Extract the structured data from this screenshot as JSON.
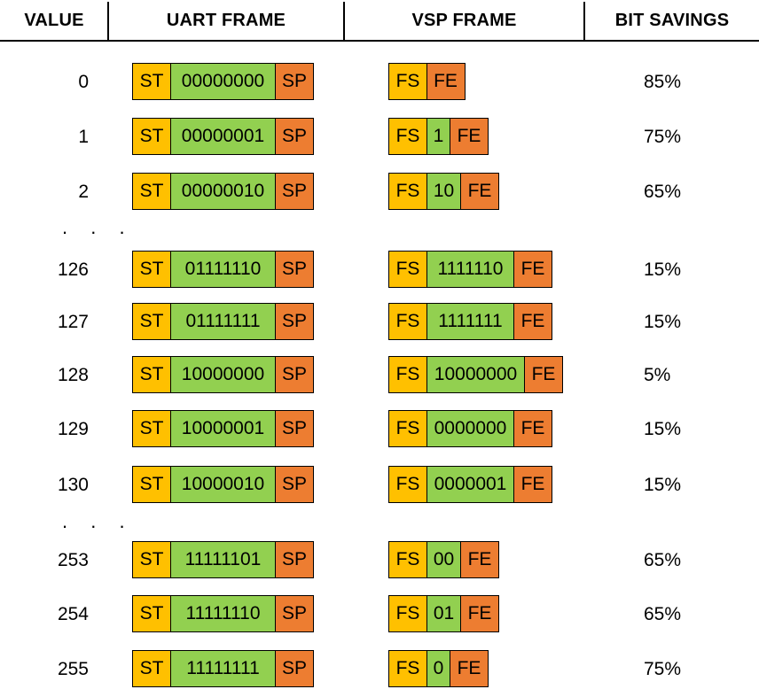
{
  "headers": {
    "value": "VALUE",
    "uart": "UART FRAME",
    "vsp": "VSP FRAME",
    "savings": "BIT SAVINGS"
  },
  "labels": {
    "start": "ST",
    "stop": "SP",
    "frame_start": "FS",
    "frame_end": "FE"
  },
  "ellipsis": ". . .",
  "colors": {
    "start": "#ffc000",
    "data": "#92d050",
    "stop": "#ed7d31"
  },
  "rows": [
    {
      "value": "0",
      "uart_bits": "00000000",
      "vsp_bits": "",
      "savings": "85%"
    },
    {
      "value": "1",
      "uart_bits": "00000001",
      "vsp_bits": "1",
      "savings": "75%"
    },
    {
      "value": "2",
      "uart_bits": "00000010",
      "vsp_bits": "10",
      "savings": "65%"
    },
    {
      "value": "126",
      "uart_bits": "01111110",
      "vsp_bits": "1111110",
      "savings": "15%"
    },
    {
      "value": "127",
      "uart_bits": "01111111",
      "vsp_bits": "1111111",
      "savings": "15%"
    },
    {
      "value": "128",
      "uart_bits": "10000000",
      "vsp_bits": "10000000",
      "savings": "5%"
    },
    {
      "value": "129",
      "uart_bits": "10000001",
      "vsp_bits": "0000000",
      "savings": "15%"
    },
    {
      "value": "130",
      "uart_bits": "10000010",
      "vsp_bits": "0000001",
      "savings": "15%"
    },
    {
      "value": "253",
      "uart_bits": "11111101",
      "vsp_bits": "00",
      "savings": "65%"
    },
    {
      "value": "254",
      "uart_bits": "11111110",
      "vsp_bits": "01",
      "savings": "65%"
    },
    {
      "value": "255",
      "uart_bits": "11111111",
      "vsp_bits": "0",
      "savings": "75%"
    }
  ]
}
